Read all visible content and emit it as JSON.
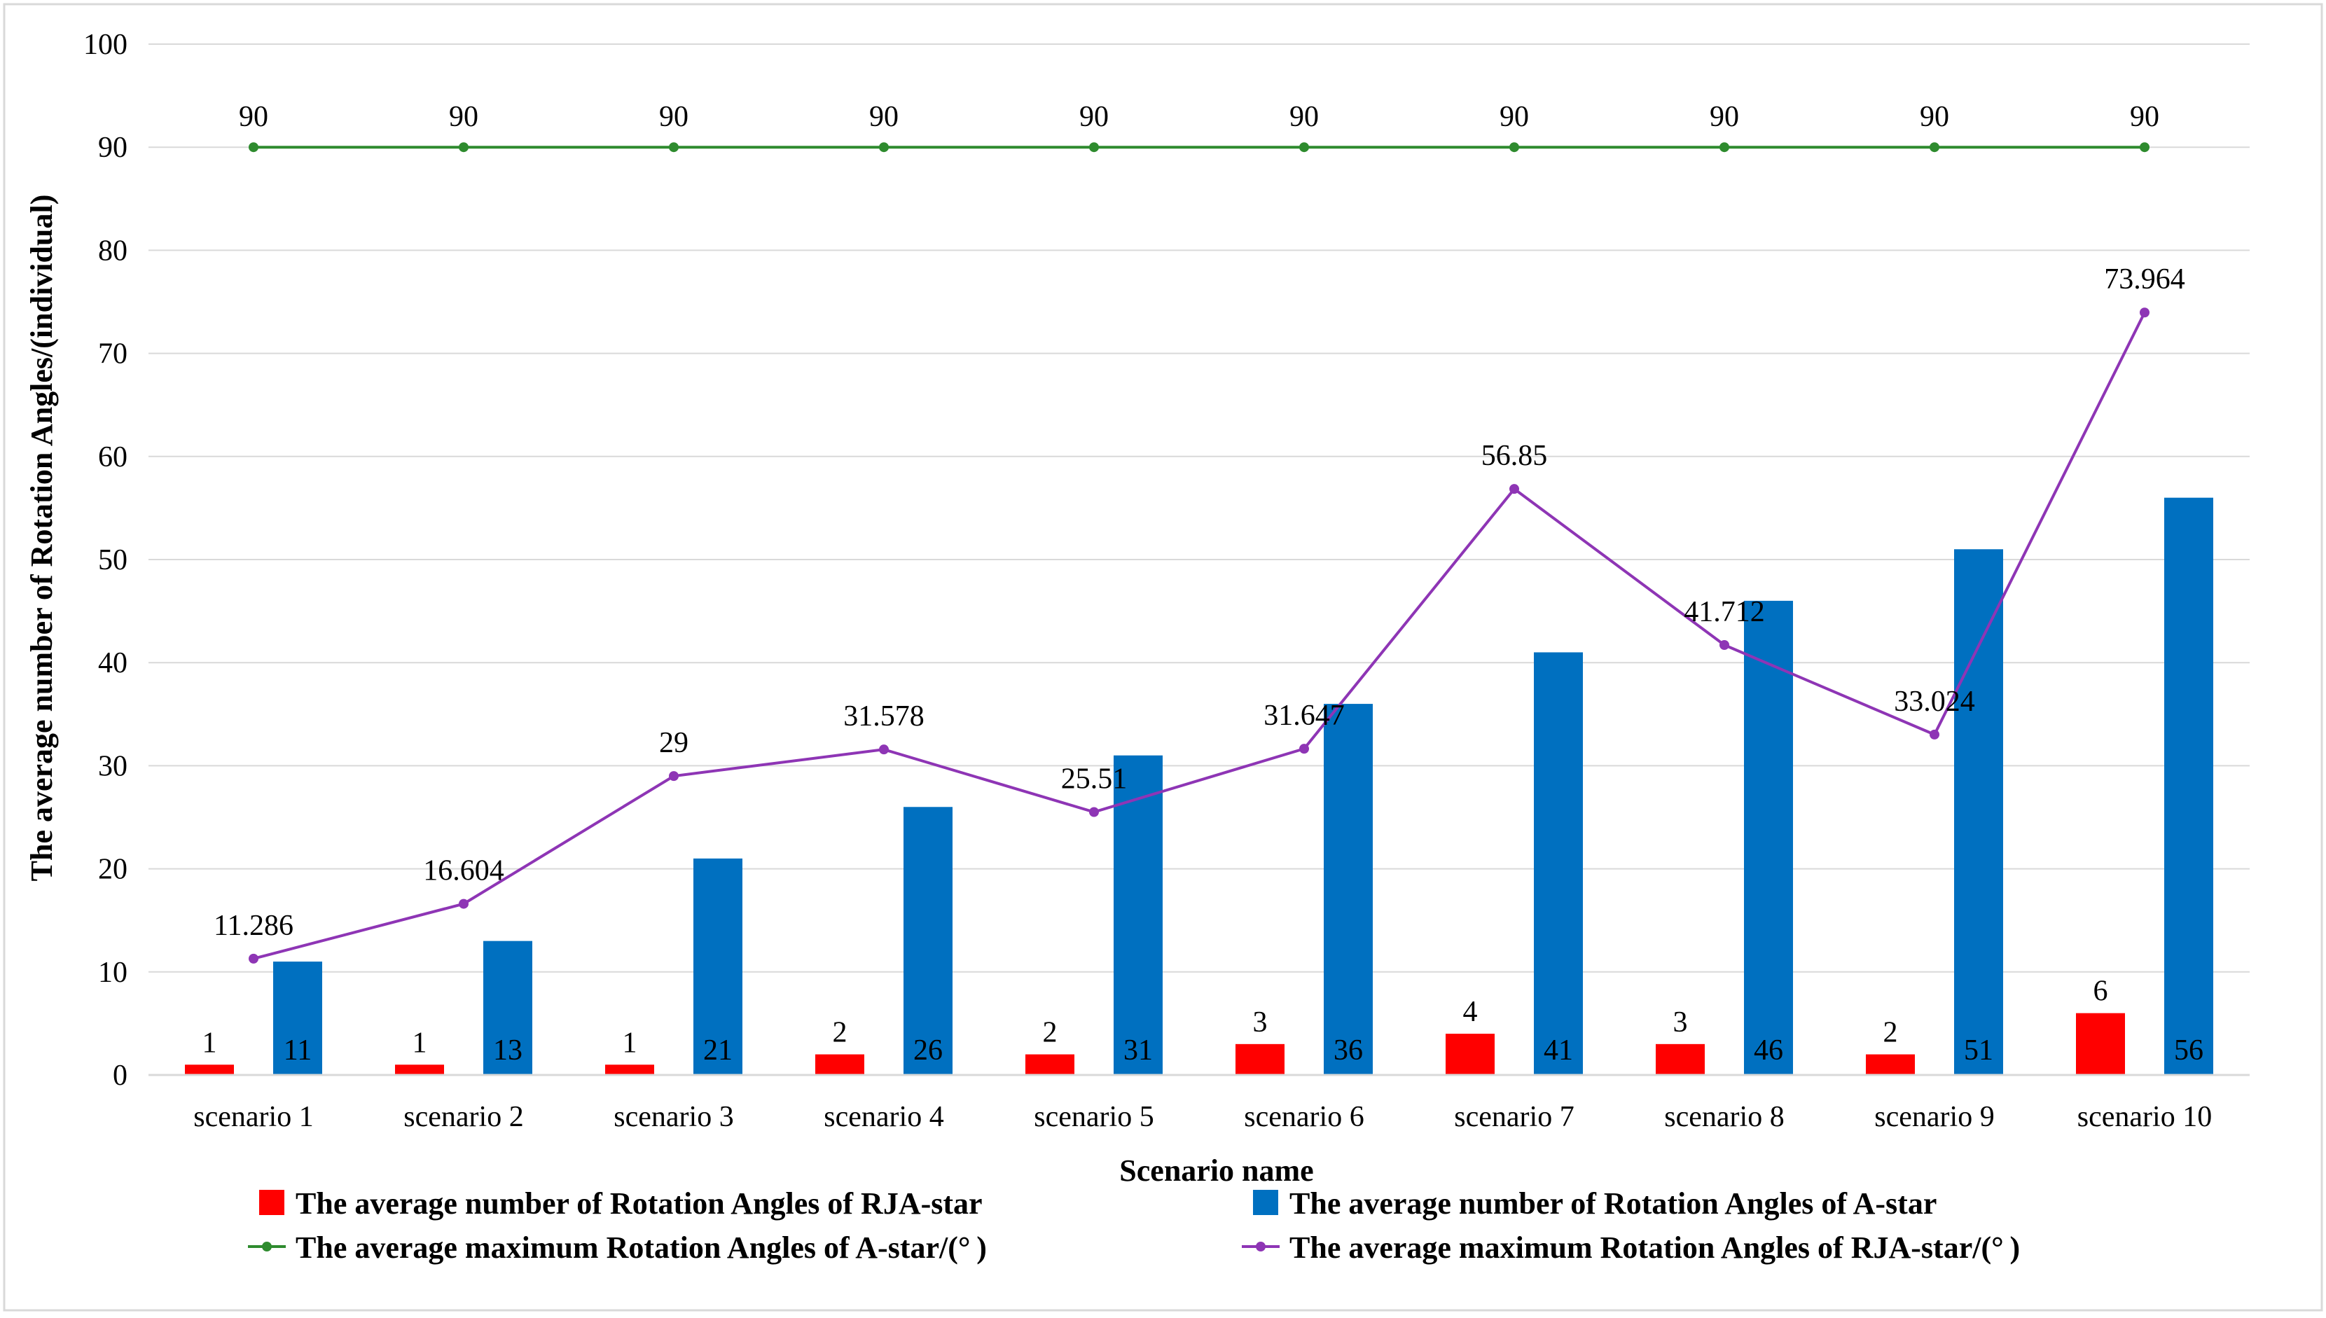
{
  "chart_data": {
    "type": "bar",
    "title": "",
    "xlabel": "Scenario name",
    "ylabel": "The average number of Rotation Angles/(individual)",
    "ylim": [
      0,
      100
    ],
    "ytick_step": 10,
    "grid": true,
    "legend_position": "bottom",
    "categories": [
      "scenario 1",
      "scenario 2",
      "scenario 3",
      "scenario 4",
      "scenario 5",
      "scenario 6",
      "scenario 7",
      "scenario 8",
      "scenario 9",
      "scenario 10"
    ],
    "series": [
      {
        "name": "The average number of Rotation Angles of RJA-star",
        "kind": "bar",
        "color": "#ff0000",
        "values": [
          1,
          1,
          1,
          2,
          2,
          3,
          4,
          3,
          2,
          6
        ],
        "labels": [
          "1",
          "1",
          "1",
          "2",
          "2",
          "3",
          "4",
          "3",
          "2",
          "6"
        ]
      },
      {
        "name": "The average number of Rotation Angles of A-star",
        "kind": "bar",
        "color": "#0070c0",
        "values": [
          11,
          13,
          21,
          26,
          31,
          36,
          41,
          46,
          51,
          56
        ],
        "labels": [
          "11",
          "13",
          "21",
          "26",
          "31",
          "36",
          "41",
          "46",
          "51",
          "56"
        ]
      },
      {
        "name": "The average maximum Rotation Angles of A-star/(° )",
        "kind": "line",
        "color": "#2e8b2e",
        "values": [
          90,
          90,
          90,
          90,
          90,
          90,
          90,
          90,
          90,
          90
        ],
        "labels": [
          "90",
          "90",
          "90",
          "90",
          "90",
          "90",
          "90",
          "90",
          "90",
          "90"
        ]
      },
      {
        "name": "The average maximum Rotation Angles of RJA-star/(° )",
        "kind": "line",
        "color": "#8e35b5",
        "values": [
          11.286,
          16.604,
          29,
          31.578,
          25.51,
          31.647,
          56.85,
          41.712,
          33.024,
          73.964
        ],
        "labels": [
          "11.286",
          "16.604",
          "29",
          "31.578",
          "25.51",
          "31.647",
          "56.85",
          "41.712",
          "33.024",
          "73.964"
        ]
      }
    ]
  }
}
